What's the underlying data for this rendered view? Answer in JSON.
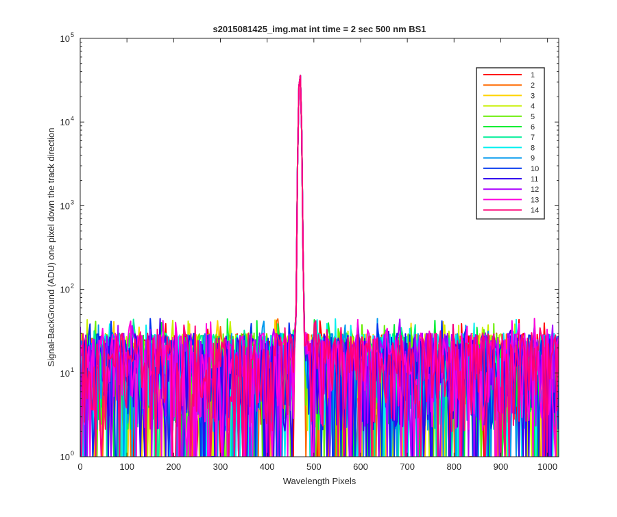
{
  "chart_data": {
    "type": "line",
    "title": "s2015081425_img.mat int time = 2 sec  500 nm BS1",
    "xlabel": "Wavelength Pixels",
    "ylabel": "Signal-BackGround (ADU) one pixel down the track direction",
    "xlim": [
      0,
      1024
    ],
    "ylim": [
      1,
      100000
    ],
    "yscale": "log",
    "x_ticks": [
      0,
      100,
      200,
      300,
      400,
      500,
      600,
      700,
      800,
      900,
      1000
    ],
    "y_ticks": [
      {
        "value": 1,
        "base": "10",
        "exp": "0"
      },
      {
        "value": 10,
        "base": "10",
        "exp": "1"
      },
      {
        "value": 100,
        "base": "10",
        "exp": "2"
      },
      {
        "value": 1000,
        "base": "10",
        "exp": "3"
      },
      {
        "value": 10000,
        "base": "10",
        "exp": "4"
      },
      {
        "value": 100000,
        "base": "10",
        "exp": "5"
      }
    ],
    "grid": false,
    "legend_position": "top-right",
    "noise": {
      "min": 1,
      "typical_max": 30,
      "max": 45
    },
    "peak": {
      "x": 470,
      "y": 40000
    },
    "series": [
      {
        "name": "1",
        "color": "#ff0000"
      },
      {
        "name": "2",
        "color": "#ff6a00"
      },
      {
        "name": "3",
        "color": "#ffd400"
      },
      {
        "name": "4",
        "color": "#c8f000"
      },
      {
        "name": "5",
        "color": "#66ee00"
      },
      {
        "name": "6",
        "color": "#00ee33"
      },
      {
        "name": "7",
        "color": "#00ee99"
      },
      {
        "name": "8",
        "color": "#00f0f0"
      },
      {
        "name": "9",
        "color": "#0099ee"
      },
      {
        "name": "10",
        "color": "#0033ee"
      },
      {
        "name": "11",
        "color": "#3300ee"
      },
      {
        "name": "12",
        "color": "#aa00ff"
      },
      {
        "name": "13",
        "color": "#ff00dd"
      },
      {
        "name": "14",
        "color": "#ff0077"
      }
    ]
  }
}
